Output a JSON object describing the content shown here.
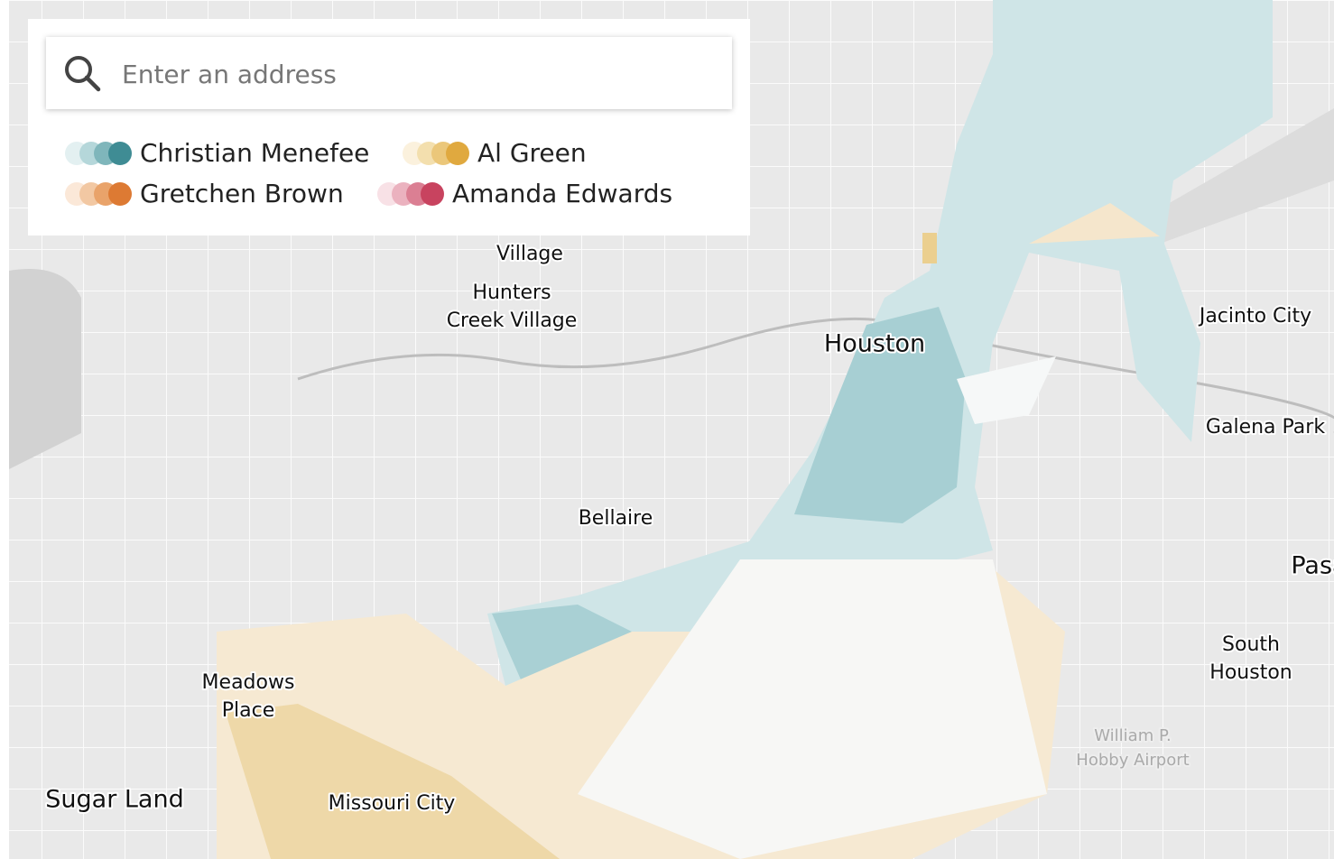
{
  "search": {
    "placeholder": "Enter an address"
  },
  "legend": [
    {
      "name": "Christian Menefee",
      "colors": [
        "#e3f0f1",
        "#b5d7da",
        "#7fb6bb",
        "#3f8c94"
      ]
    },
    {
      "name": "Al Green",
      "colors": [
        "#fbf1dd",
        "#f3dfae",
        "#ebc77a",
        "#e0a93f"
      ]
    },
    {
      "name": "Gretchen Brown",
      "colors": [
        "#fbe8d8",
        "#f2c8a3",
        "#e9a36a",
        "#dd7a33"
      ]
    },
    {
      "name": "Amanda Edwards",
      "colors": [
        "#f8e1e6",
        "#ebb2bf",
        "#db7f93",
        "#c8435f"
      ]
    }
  ],
  "places": [
    {
      "lines": [
        "Village"
      ]
    },
    {
      "lines": [
        "Hunters",
        "Creek Village"
      ]
    },
    {
      "lines": [
        "Houston"
      ]
    },
    {
      "lines": [
        "Jacinto City"
      ]
    },
    {
      "lines": [
        "Galena Park"
      ]
    },
    {
      "lines": [
        "Bellaire"
      ]
    },
    {
      "lines": [
        "Pasadena"
      ]
    },
    {
      "lines": [
        "South",
        "Houston"
      ]
    },
    {
      "lines": [
        "Meadows",
        "Place"
      ]
    },
    {
      "lines": [
        "Sugar Land"
      ]
    },
    {
      "lines": [
        "Missouri City"
      ]
    },
    {
      "lines": [
        "William P.",
        "Hobby Airport"
      ]
    }
  ]
}
